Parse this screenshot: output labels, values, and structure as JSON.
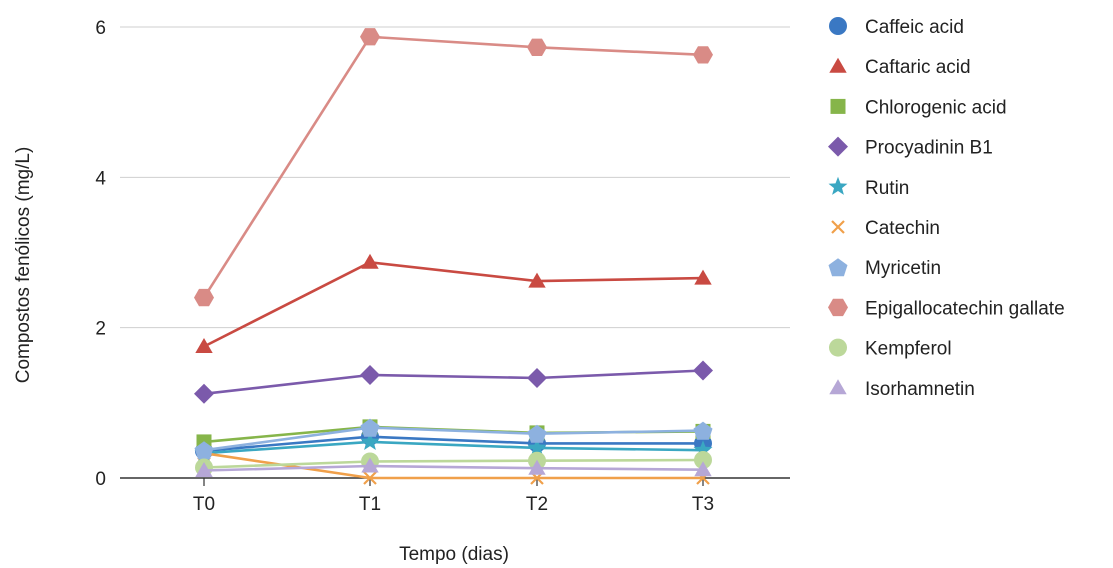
{
  "chart_data": {
    "type": "line",
    "title": "",
    "xlabel": "Tempo (dias)",
    "ylabel": "Compostos fenólicos (mg/L)",
    "categories": [
      "T0",
      "T1",
      "T2",
      "T3"
    ],
    "ylim": [
      0,
      6
    ],
    "yticks": [
      0,
      2,
      4,
      6
    ],
    "grid": true,
    "legend_position": "right",
    "series": [
      {
        "name": "Caffeic acid",
        "color": "#3a78c3",
        "marker": "circle",
        "values": [
          0.36,
          0.55,
          0.46,
          0.46
        ]
      },
      {
        "name": "Caftaric acid",
        "color": "#c94a42",
        "marker": "triangle",
        "values": [
          1.75,
          2.87,
          2.62,
          2.66
        ]
      },
      {
        "name": "Chlorogenic acid",
        "color": "#86b54a",
        "marker": "square",
        "values": [
          0.48,
          0.68,
          0.6,
          0.62
        ]
      },
      {
        "name": "Procyadinin B1",
        "color": "#7b5aab",
        "marker": "diamond",
        "values": [
          1.12,
          1.37,
          1.33,
          1.43
        ]
      },
      {
        "name": "Rutin",
        "color": "#3aa7c2",
        "marker": "star",
        "values": [
          0.33,
          0.48,
          0.4,
          0.37
        ]
      },
      {
        "name": "Catechin",
        "color": "#f0a04a",
        "marker": "x",
        "values": [
          0.33,
          0.0,
          0.0,
          0.0
        ]
      },
      {
        "name": "Myricetin",
        "color": "#8db1df",
        "marker": "pentagon",
        "values": [
          0.37,
          0.67,
          0.59,
          0.63
        ]
      },
      {
        "name": "Epigallocatechin gallate",
        "color": "#d98b86",
        "marker": "hexagon",
        "values": [
          2.4,
          5.87,
          5.73,
          5.63
        ]
      },
      {
        "name": "Kempferol",
        "color": "#bcd89a",
        "marker": "circle",
        "values": [
          0.14,
          0.22,
          0.23,
          0.24
        ]
      },
      {
        "name": "Isorhamnetin",
        "color": "#b6a7d6",
        "marker": "triangle",
        "values": [
          0.1,
          0.16,
          0.13,
          0.11
        ]
      }
    ]
  }
}
